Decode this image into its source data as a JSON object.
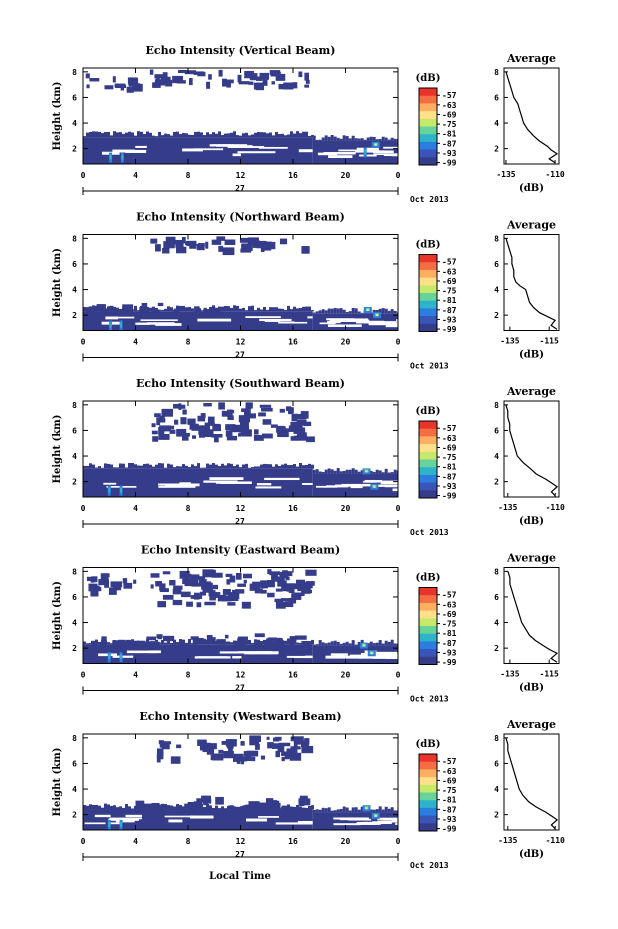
{
  "figure_xlabel": "Local Time",
  "colorbar": {
    "unit": "(dB)",
    "ticks": [
      "-57",
      "-63",
      "-69",
      "-75",
      "-81",
      "-87",
      "-93",
      "-99"
    ],
    "colors": [
      "#e8342a",
      "#f46d43",
      "#fdae61",
      "#fee08b",
      "#c7e96b",
      "#66d49a",
      "#2fb3c9",
      "#2b7de0",
      "#3a55b8",
      "#353c8a"
    ]
  },
  "chart_data": [
    {
      "type": "heatmap",
      "title": "Echo Intensity (Vertical Beam)",
      "ylabel": "Height (km)",
      "yticks": [
        "2",
        "4",
        "6",
        "8"
      ],
      "ylim": [
        0.8,
        8.3
      ],
      "xticks": [
        "0",
        "4",
        "8",
        "12",
        "16",
        "20",
        "0"
      ],
      "xlim": [
        0,
        24
      ],
      "date_day": "27",
      "date_month": "Oct 2013",
      "layers": [
        {
          "t0": 0,
          "t1": 17.5,
          "h0": 0.8,
          "h1": 2.9
        },
        {
          "t0": 17.5,
          "t1": 24,
          "h0": 0.8,
          "h1": 2.6
        },
        {
          "t0": 5,
          "t1": 17,
          "h0": 7.0,
          "h1": 8.2,
          "sparse": true
        },
        {
          "t0": 0,
          "t1": 4,
          "h0": 6.8,
          "h1": 7.9,
          "sparse": true
        }
      ],
      "highlights": [
        {
          "t": 2.1,
          "h": 1.3,
          "level": "high"
        },
        {
          "t": 3.0,
          "h": 1.3,
          "level": "high"
        },
        {
          "t": 21.5,
          "h": 1.7,
          "level": "high"
        },
        {
          "t": 22.3,
          "h": 2.3,
          "level": "mid"
        }
      ],
      "profile": {
        "title": "Average",
        "xlabel": "(dB)",
        "xticks": [
          "-135",
          "-110"
        ],
        "xlim": [
          -136,
          -108
        ],
        "yticks": [
          "2",
          "4",
          "6",
          "8"
        ],
        "ylim": [
          0.8,
          8.3
        ],
        "height": [
          0.9,
          1.2,
          1.6,
          1.9,
          2.2,
          2.6,
          3.0,
          3.5,
          4.0,
          4.5,
          5.0,
          5.5,
          6.0,
          6.5,
          7.0,
          7.5,
          8.0
        ],
        "value": [
          -110,
          -113,
          -109,
          -112,
          -114,
          -118,
          -121,
          -124,
          -126,
          -127,
          -128,
          -129,
          -131,
          -132,
          -133,
          -134,
          -135
        ]
      }
    },
    {
      "type": "heatmap",
      "title": "Echo Intensity (Northward Beam)",
      "ylabel": "Height (km)",
      "yticks": [
        "2",
        "4",
        "6",
        "8"
      ],
      "ylim": [
        0.8,
        8.3
      ],
      "xticks": [
        "0",
        "4",
        "8",
        "12",
        "16",
        "20",
        "0"
      ],
      "xlim": [
        0,
        24
      ],
      "date_day": "27",
      "date_month": "Oct 2013",
      "layers": [
        {
          "t0": 0,
          "t1": 17.5,
          "h0": 0.8,
          "h1": 2.3
        },
        {
          "t0": 0,
          "t1": 10,
          "h0": 2.3,
          "h1": 3.0,
          "sparse": true
        },
        {
          "t0": 17.5,
          "t1": 24,
          "h0": 0.8,
          "h1": 2.1
        },
        {
          "t0": 5,
          "t1": 17,
          "h0": 7.2,
          "h1": 8.2,
          "sparse": true
        }
      ],
      "highlights": [
        {
          "t": 2.1,
          "h": 1.2,
          "level": "high"
        },
        {
          "t": 2.9,
          "h": 1.2,
          "level": "high"
        },
        {
          "t": 21.7,
          "h": 2.4,
          "level": "mid"
        },
        {
          "t": 22.4,
          "h": 2.0,
          "level": "mid"
        }
      ],
      "profile": {
        "title": "Average",
        "xlabel": "(dB)",
        "xticks": [
          "-135",
          "-115"
        ],
        "xlim": [
          -138,
          -110
        ],
        "yticks": [
          "2",
          "4",
          "6",
          "8"
        ],
        "ylim": [
          0.8,
          8.3
        ],
        "height": [
          0.9,
          1.2,
          1.6,
          1.9,
          2.2,
          2.6,
          3.0,
          3.5,
          4.0,
          4.3,
          4.6,
          5.0,
          5.5,
          6.0,
          6.5,
          7.0,
          7.5,
          8.0
        ],
        "value": [
          -111,
          -114,
          -112,
          -116,
          -120,
          -123,
          -125,
          -126,
          -127,
          -130,
          -132,
          -133,
          -133,
          -134,
          -134,
          -135,
          -136,
          -137
        ]
      }
    },
    {
      "type": "heatmap",
      "title": "Echo Intensity (Southward Beam)",
      "ylabel": "Height (km)",
      "yticks": [
        "2",
        "4",
        "6",
        "8"
      ],
      "ylim": [
        0.8,
        8.3
      ],
      "xticks": [
        "0",
        "4",
        "8",
        "12",
        "16",
        "20",
        "0"
      ],
      "xlim": [
        0,
        24
      ],
      "date_day": "27",
      "date_month": "Oct 2013",
      "layers": [
        {
          "t0": 0,
          "t1": 17.5,
          "h0": 0.8,
          "h1": 3.0
        },
        {
          "t0": 17.5,
          "t1": 24,
          "h0": 0.8,
          "h1": 2.6
        },
        {
          "t0": 5,
          "t1": 17,
          "h0": 5.5,
          "h1": 8.2,
          "sparse": true
        }
      ],
      "highlights": [
        {
          "t": 2.0,
          "h": 1.3,
          "level": "high"
        },
        {
          "t": 2.9,
          "h": 1.3,
          "level": "high"
        },
        {
          "t": 21.6,
          "h": 2.8,
          "level": "mid"
        },
        {
          "t": 22.2,
          "h": 1.6,
          "level": "mid"
        }
      ],
      "profile": {
        "title": "Average",
        "xlabel": "(dB)",
        "xticks": [
          "-135",
          "-110"
        ],
        "xlim": [
          -137,
          -108
        ],
        "yticks": [
          "2",
          "4",
          "6",
          "8"
        ],
        "ylim": [
          0.8,
          8.3
        ],
        "height": [
          0.9,
          1.2,
          1.6,
          1.9,
          2.2,
          2.6,
          3.0,
          3.5,
          4.0,
          4.5,
          5.0,
          5.5,
          6.0,
          6.5,
          7.0,
          7.5,
          8.0
        ],
        "value": [
          -110,
          -112,
          -109,
          -112,
          -115,
          -120,
          -123,
          -127,
          -130,
          -131,
          -132,
          -133,
          -134,
          -134,
          -135,
          -135,
          -136
        ]
      }
    },
    {
      "type": "heatmap",
      "title": "Echo Intensity (Eastward Beam)",
      "ylabel": "Height (km)",
      "yticks": [
        "2",
        "4",
        "6",
        "8"
      ],
      "ylim": [
        0.8,
        8.3
      ],
      "xticks": [
        "0",
        "4",
        "8",
        "12",
        "16",
        "20",
        "0"
      ],
      "xlim": [
        0,
        24
      ],
      "date_day": "27",
      "date_month": "Oct 2013",
      "layers": [
        {
          "t0": 0,
          "t1": 17.5,
          "h0": 0.8,
          "h1": 2.3
        },
        {
          "t0": 0,
          "t1": 17,
          "h0": 2.3,
          "h1": 3.2,
          "sparse": true
        },
        {
          "t0": 17.5,
          "t1": 24,
          "h0": 0.8,
          "h1": 2.2
        },
        {
          "t0": 5,
          "t1": 17,
          "h0": 5.5,
          "h1": 8.2,
          "sparse": true
        },
        {
          "t0": 0,
          "t1": 4,
          "h0": 6.5,
          "h1": 8.0,
          "sparse": true
        }
      ],
      "highlights": [
        {
          "t": 2.0,
          "h": 1.3,
          "level": "high"
        },
        {
          "t": 2.9,
          "h": 1.3,
          "level": "high"
        },
        {
          "t": 21.4,
          "h": 2.2,
          "level": "mid"
        },
        {
          "t": 22.0,
          "h": 1.6,
          "level": "mid"
        }
      ],
      "profile": {
        "title": "Average",
        "xlabel": "(dB)",
        "xticks": [
          "-135",
          "-115"
        ],
        "xlim": [
          -138,
          -110
        ],
        "yticks": [
          "2",
          "4",
          "6",
          "8"
        ],
        "ylim": [
          0.8,
          8.3
        ],
        "height": [
          0.9,
          1.2,
          1.6,
          1.9,
          2.2,
          2.6,
          3.0,
          3.5,
          4.0,
          4.5,
          5.0,
          5.5,
          6.0,
          6.5,
          7.0,
          7.5,
          8.0
        ],
        "value": [
          -111,
          -114,
          -111,
          -115,
          -118,
          -122,
          -125,
          -127,
          -129,
          -130,
          -131,
          -132,
          -133,
          -134,
          -135,
          -135,
          -136
        ]
      }
    },
    {
      "type": "heatmap",
      "title": "Echo Intensity (Westward Beam)",
      "ylabel": "Height (km)",
      "yticks": [
        "2",
        "4",
        "6",
        "8"
      ],
      "ylim": [
        0.8,
        8.3
      ],
      "xticks": [
        "0",
        "4",
        "8",
        "12",
        "16",
        "20",
        "0"
      ],
      "xlim": [
        0,
        24
      ],
      "date_day": "27",
      "date_month": "Oct 2013",
      "layers": [
        {
          "t0": 0,
          "t1": 17.5,
          "h0": 0.8,
          "h1": 2.4
        },
        {
          "t0": 4,
          "t1": 17,
          "h0": 2.4,
          "h1": 3.5,
          "sparse": true
        },
        {
          "t0": 17.5,
          "t1": 24,
          "h0": 0.8,
          "h1": 2.2
        },
        {
          "t0": 5,
          "t1": 17,
          "h0": 6.5,
          "h1": 8.2,
          "sparse": true
        }
      ],
      "highlights": [
        {
          "t": 2.0,
          "h": 1.2,
          "level": "high"
        },
        {
          "t": 2.9,
          "h": 1.2,
          "level": "high"
        },
        {
          "t": 21.6,
          "h": 2.5,
          "level": "mid"
        },
        {
          "t": 22.3,
          "h": 1.9,
          "level": "mid"
        }
      ],
      "profile": {
        "title": "Average",
        "xlabel": "(dB)",
        "xticks": [
          "-135",
          "-110"
        ],
        "xlim": [
          -137,
          -108
        ],
        "yticks": [
          "2",
          "4",
          "6",
          "8"
        ],
        "ylim": [
          0.8,
          8.3
        ],
        "height": [
          0.9,
          1.2,
          1.6,
          1.9,
          2.2,
          2.6,
          3.0,
          3.5,
          4.0,
          4.5,
          5.0,
          5.5,
          6.0,
          6.5,
          7.0,
          7.5,
          8.0
        ],
        "value": [
          -110,
          -112,
          -109,
          -112,
          -115,
          -120,
          -124,
          -127,
          -129,
          -130,
          -131,
          -132,
          -133,
          -134,
          -135,
          -135,
          -136
        ]
      }
    }
  ]
}
